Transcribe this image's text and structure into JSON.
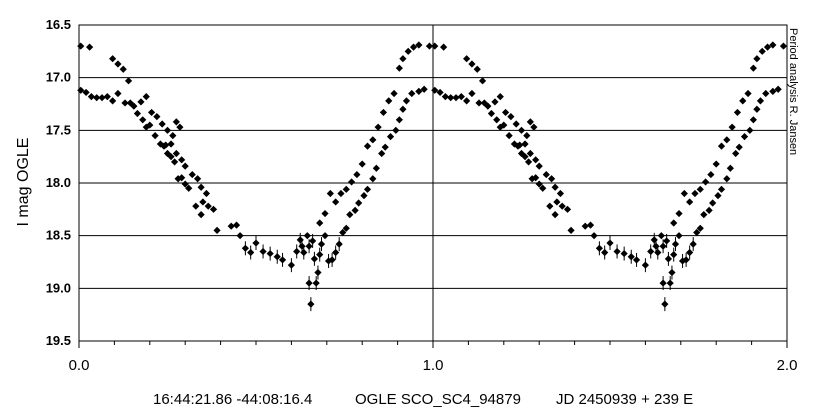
{
  "chart_data": {
    "type": "scatter",
    "ylabel": "I mag OGLE",
    "ylim": [
      16.5,
      19.5
    ],
    "y_inverted": true,
    "xlim": [
      0.0,
      2.0
    ],
    "y_ticks": [
      "16.5",
      "17.0",
      "17.5",
      "18.0",
      "18.5",
      "19.0",
      "19.5"
    ],
    "x_tick_labels": [
      "0.0",
      "1.0",
      "2.0"
    ],
    "x_minor_step": 0.1,
    "grid": "horizontal",
    "caption": {
      "coords": "16:44:21.86 -44:08:16.4",
      "object": "OGLE SCO_SC4_94879",
      "ephemeris": "JD 2450939 + 239 E"
    },
    "credit": "Period analysis R. Jansen",
    "marker_color": "#000000",
    "series": [
      {
        "values": [
          [
            0.005,
            16.7
          ],
          [
            0.03,
            16.71
          ],
          [
            0.005,
            17.12
          ],
          [
            0.02,
            17.14
          ],
          [
            0.035,
            17.18
          ],
          [
            0.05,
            17.19
          ],
          [
            0.065,
            17.19
          ],
          [
            0.08,
            17.18
          ],
          [
            0.095,
            17.22
          ],
          [
            0.11,
            17.15
          ],
          [
            0.095,
            16.82
          ],
          [
            0.11,
            16.87
          ],
          [
            0.125,
            16.92
          ],
          [
            0.14,
            17.03
          ],
          [
            0.13,
            17.24
          ],
          [
            0.145,
            17.24
          ],
          [
            0.155,
            17.27
          ],
          [
            0.165,
            17.34
          ],
          [
            0.18,
            17.4
          ],
          [
            0.19,
            17.47
          ],
          [
            0.2,
            17.45
          ],
          [
            0.215,
            17.55
          ],
          [
            0.23,
            17.63
          ],
          [
            0.24,
            17.65
          ],
          [
            0.25,
            17.72
          ],
          [
            0.26,
            17.75
          ],
          [
            0.27,
            17.8
          ],
          [
            0.28,
            17.96
          ],
          [
            0.29,
            17.95
          ],
          [
            0.3,
            18.01
          ],
          [
            0.31,
            18.05
          ],
          [
            0.175,
            17.23
          ],
          [
            0.19,
            17.18
          ],
          [
            0.205,
            17.33
          ],
          [
            0.22,
            17.37
          ],
          [
            0.235,
            17.44
          ],
          [
            0.25,
            17.5
          ],
          [
            0.265,
            17.55
          ],
          [
            0.245,
            17.64
          ],
          [
            0.26,
            17.63
          ],
          [
            0.275,
            17.72
          ],
          [
            0.29,
            17.78
          ],
          [
            0.3,
            17.84
          ],
          [
            0.32,
            17.92
          ],
          [
            0.335,
            17.96
          ],
          [
            0.345,
            18.04
          ],
          [
            0.36,
            18.1
          ],
          [
            0.35,
            18.18
          ],
          [
            0.365,
            18.22
          ],
          [
            0.38,
            18.25
          ],
          [
            0.275,
            17.42
          ],
          [
            0.285,
            17.47
          ],
          [
            0.33,
            18.22
          ],
          [
            0.345,
            18.3
          ],
          [
            0.39,
            18.45
          ],
          [
            0.43,
            18.41
          ],
          [
            0.445,
            18.4
          ],
          [
            0.455,
            18.5
          ],
          [
            0.47,
            18.62
          ],
          [
            0.485,
            18.66
          ],
          [
            0.5,
            18.57
          ],
          [
            0.52,
            18.65
          ],
          [
            0.54,
            18.67
          ],
          [
            0.56,
            18.7
          ],
          [
            0.575,
            18.73
          ],
          [
            0.6,
            18.78
          ],
          [
            0.615,
            18.65
          ],
          [
            0.625,
            18.54
          ],
          [
            0.63,
            18.6
          ],
          [
            0.635,
            18.66
          ],
          [
            0.645,
            18.5
          ],
          [
            0.65,
            18.95
          ],
          [
            0.655,
            19.15
          ],
          [
            0.66,
            18.55
          ],
          [
            0.665,
            18.72
          ],
          [
            0.67,
            18.95
          ],
          [
            0.675,
            18.85
          ],
          [
            0.68,
            18.68
          ],
          [
            0.685,
            18.58
          ],
          [
            0.695,
            18.5
          ],
          [
            0.705,
            18.74
          ],
          [
            0.715,
            18.73
          ],
          [
            0.725,
            18.66
          ],
          [
            0.735,
            18.58
          ],
          [
            0.745,
            18.47
          ],
          [
            0.755,
            18.43
          ],
          [
            0.765,
            18.3
          ],
          [
            0.78,
            18.26
          ],
          [
            0.79,
            18.19
          ],
          [
            0.805,
            18.12
          ],
          [
            0.815,
            18.06
          ],
          [
            0.83,
            17.96
          ],
          [
            0.84,
            17.86
          ],
          [
            0.855,
            17.72
          ],
          [
            0.865,
            17.66
          ],
          [
            0.88,
            17.56
          ],
          [
            0.895,
            17.5
          ],
          [
            0.905,
            17.4
          ],
          [
            0.915,
            17.3
          ],
          [
            0.925,
            17.22
          ],
          [
            0.65,
            18.6
          ],
          [
            0.68,
            18.38
          ],
          [
            0.695,
            18.29
          ],
          [
            0.71,
            18.1
          ],
          [
            0.725,
            18.18
          ],
          [
            0.74,
            18.1
          ],
          [
            0.755,
            18.06
          ],
          [
            0.77,
            17.99
          ],
          [
            0.785,
            17.92
          ],
          [
            0.8,
            17.82
          ],
          [
            0.815,
            17.65
          ],
          [
            0.83,
            17.59
          ],
          [
            0.845,
            17.47
          ],
          [
            0.86,
            17.33
          ],
          [
            0.875,
            17.22
          ],
          [
            0.89,
            17.15
          ],
          [
            0.905,
            16.91
          ],
          [
            0.915,
            16.82
          ],
          [
            0.93,
            16.75
          ],
          [
            0.945,
            16.71
          ],
          [
            0.96,
            16.69
          ],
          [
            0.94,
            17.15
          ],
          [
            0.96,
            17.13
          ],
          [
            0.975,
            17.11
          ],
          [
            0.99,
            16.7
          ]
        ]
      }
    ]
  }
}
